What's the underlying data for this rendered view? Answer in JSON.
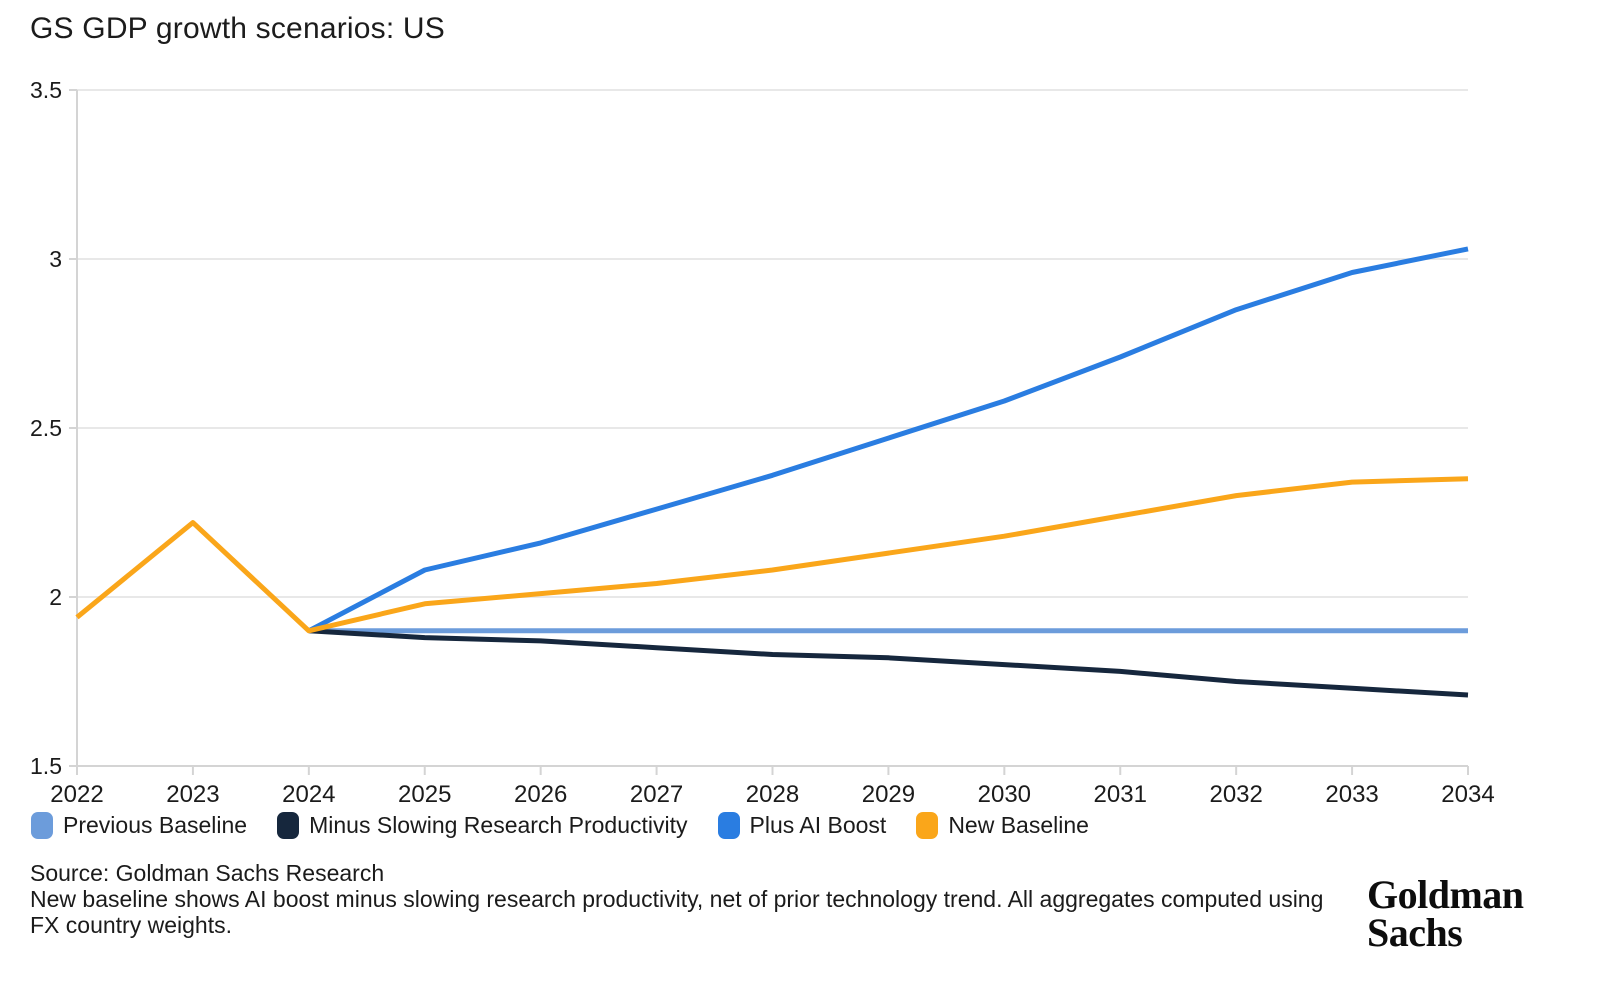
{
  "page": {
    "title": "GS GDP growth scenarios: US"
  },
  "chart_data": {
    "type": "line",
    "title": "GS GDP growth scenarios: US",
    "xlim": [
      2022,
      2034
    ],
    "ylim": [
      1.5,
      3.5
    ],
    "x_ticks": [
      2022,
      2023,
      2024,
      2025,
      2026,
      2027,
      2028,
      2029,
      2030,
      2031,
      2032,
      2033,
      2034
    ],
    "y_ticks": [
      1.5,
      2,
      2.5,
      3,
      3.5
    ],
    "grid": "horizontal",
    "legend_position": "bottom",
    "axis_color": "#d4d4d4",
    "grid_color": "#e8e8e8",
    "tick_label_color": "#1b1b1b",
    "line_width": 5,
    "series": [
      {
        "name": "Previous Baseline",
        "color": "#6C9CDB",
        "x": [
          2024,
          2025,
          2026,
          2027,
          2028,
          2029,
          2030,
          2031,
          2032,
          2033,
          2034
        ],
        "values": [
          1.9,
          1.9,
          1.9,
          1.9,
          1.9,
          1.9,
          1.9,
          1.9,
          1.9,
          1.9,
          1.9
        ]
      },
      {
        "name": "Minus Slowing Research Productivity",
        "color": "#16273D",
        "x": [
          2024,
          2025,
          2026,
          2027,
          2028,
          2029,
          2030,
          2031,
          2032,
          2033,
          2034
        ],
        "values": [
          1.9,
          1.88,
          1.87,
          1.85,
          1.83,
          1.82,
          1.8,
          1.78,
          1.75,
          1.73,
          1.71
        ]
      },
      {
        "name": "Plus AI Boost",
        "color": "#2A7DE1",
        "x": [
          2024,
          2025,
          2026,
          2027,
          2028,
          2029,
          2030,
          2031,
          2032,
          2033,
          2034
        ],
        "values": [
          1.9,
          2.08,
          2.16,
          2.26,
          2.36,
          2.47,
          2.58,
          2.71,
          2.85,
          2.96,
          3.03
        ]
      },
      {
        "name": "New Baseline",
        "color": "#FAA61A",
        "x": [
          2022,
          2023,
          2024,
          2025,
          2026,
          2027,
          2028,
          2029,
          2030,
          2031,
          2032,
          2033,
          2034
        ],
        "values": [
          1.94,
          2.22,
          1.9,
          1.98,
          2.01,
          2.04,
          2.08,
          2.13,
          2.18,
          2.24,
          2.3,
          2.34,
          2.35
        ]
      }
    ]
  },
  "footer": {
    "source": "Source: Goldman Sachs Research",
    "note": "New baseline shows AI boost minus slowing research productivity, net of prior technology trend. All aggregates computed using FX country weights."
  },
  "logo": {
    "line1": "Goldman",
    "line2": "Sachs"
  }
}
